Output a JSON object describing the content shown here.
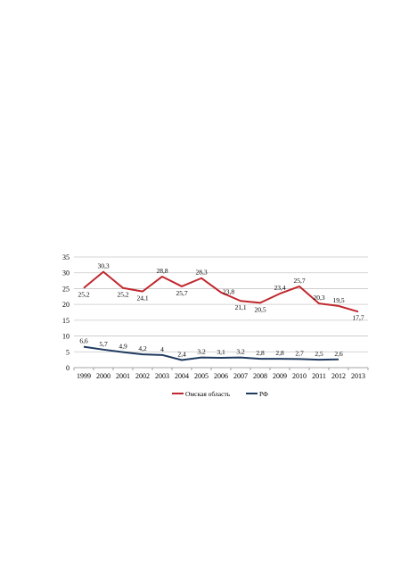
{
  "chart_data": {
    "type": "line",
    "categories": [
      "1999",
      "2000",
      "2001",
      "2002",
      "2003",
      "2004",
      "2005",
      "2006",
      "2007",
      "2008",
      "2009",
      "2010",
      "2011",
      "2012",
      "2013"
    ],
    "series": [
      {
        "name": "Омская область",
        "color": "#c0272d",
        "values": [
          25.2,
          30.3,
          25.2,
          24.1,
          28.8,
          25.7,
          28.3,
          23.8,
          21.1,
          20.5,
          23.4,
          25.7,
          20.3,
          19.5,
          17.7
        ],
        "labels": [
          "25,2",
          "30,3",
          "25,2",
          "24,1",
          "28,8",
          "25,7",
          "28,3",
          "23,8",
          "21,1",
          "20,5",
          "23,4",
          "25,7",
          "20,3",
          "19,5",
          "17,7"
        ]
      },
      {
        "name": "РФ",
        "color": "#1f3a5f",
        "values": [
          6.6,
          5.7,
          4.9,
          4.2,
          4.0,
          2.4,
          3.2,
          3.1,
          3.2,
          2.8,
          2.8,
          2.7,
          2.5,
          2.6,
          null
        ],
        "labels": [
          "6,6",
          "5,7",
          "4,9",
          "4,2",
          "4",
          "2,4",
          "3,2",
          "3,1",
          "3,2",
          "2,8",
          "2,8",
          "2,7",
          "2,5",
          "2,6",
          null
        ]
      }
    ],
    "yticks": [
      0,
      5,
      10,
      15,
      20,
      25,
      30,
      35
    ],
    "ylim": [
      0,
      35
    ],
    "grid": true,
    "legend_position": "bottom"
  }
}
